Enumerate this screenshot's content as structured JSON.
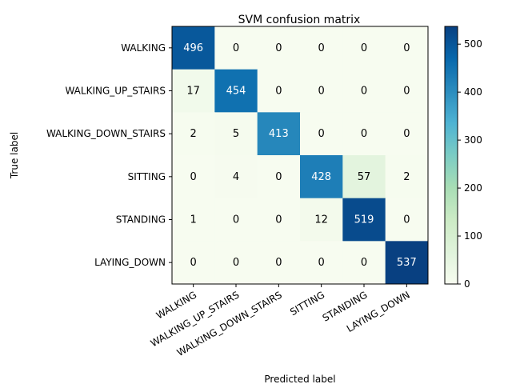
{
  "chart_data": {
    "type": "heatmap",
    "title": "SVM confusion matrix",
    "xlabel": "Predicted label",
    "ylabel": "True label",
    "x_categories": [
      "WALKING",
      "WALKING_UP_STAIRS",
      "WALKING_DOWN_STAIRS",
      "SITTING",
      "STANDING",
      "LAYING_DOWN"
    ],
    "y_categories": [
      "WALKING",
      "WALKING_UP_STAIRS",
      "WALKING_DOWN_STAIRS",
      "SITTING",
      "STANDING",
      "LAYING_DOWN"
    ],
    "values": [
      [
        496,
        0,
        0,
        0,
        0,
        0
      ],
      [
        17,
        454,
        0,
        0,
        0,
        0
      ],
      [
        2,
        5,
        413,
        0,
        0,
        0
      ],
      [
        0,
        4,
        0,
        428,
        57,
        2
      ],
      [
        1,
        0,
        0,
        12,
        519,
        0
      ],
      [
        0,
        0,
        0,
        0,
        0,
        537
      ]
    ],
    "colorbar": {
      "min": 0,
      "max": 537,
      "ticks": [
        0,
        100,
        200,
        300,
        400,
        500
      ],
      "tick_labels": [
        "0",
        "100",
        "200",
        "300",
        "400",
        "500"
      ],
      "colormap": "GnBu"
    },
    "x_tick_rotation_deg": 30,
    "grid": false
  }
}
